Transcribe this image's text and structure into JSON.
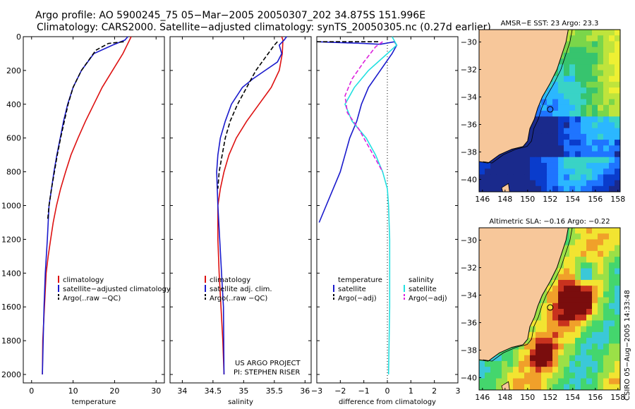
{
  "header": {
    "line1": "Argo profile: AO 5900245_75 05−Mar−2005 20050307_202 34.875S 151.996E",
    "line2": "Climatology: CARS2000. Satellite−adjusted climatology: synTS_20050305.nc (0.27d earlier)"
  },
  "project": {
    "line1": "US ARGO PROJECT",
    "line2": "PI: STEPHEN RISER"
  },
  "side_credit": "CSIRO 05−Aug−2005 14:33:48",
  "colors": {
    "climatology": "#dd1111",
    "satellite": "#1a1acc",
    "argo": "#000000",
    "satellite_salinity": "#22e0e0",
    "argo_adj_salinity": "#dd22dd",
    "land": "#f7c79a",
    "coast": "#000000"
  },
  "chart_data": [
    {
      "type": "line",
      "title": "",
      "xlabel": "temperature",
      "ylabel": "",
      "xlim": [
        -2,
        32
      ],
      "ylim": [
        2050,
        0
      ],
      "xticks": [
        0,
        10,
        20,
        30
      ],
      "yticks": [
        0,
        200,
        400,
        600,
        800,
        1000,
        1200,
        1400,
        1600,
        1800,
        2000
      ],
      "legend": [
        "climatology",
        "satellite−adjusted climatology",
        "Argo(..raw −QC)"
      ],
      "series": [
        {
          "name": "climatology",
          "style": "solid",
          "color": "climatology",
          "x": [
            24.0,
            23.6,
            22.0,
            19.5,
            17.0,
            15.0,
            13.0,
            11.2,
            9.5,
            8.2,
            7.0,
            6.0,
            5.2,
            4.6,
            4.0,
            3.5,
            3.1,
            2.7,
            2.6
          ],
          "y": [
            0,
            20,
            100,
            200,
            300,
            400,
            500,
            600,
            700,
            800,
            900,
            1000,
            1100,
            1200,
            1300,
            1400,
            1600,
            1800,
            2000
          ]
        },
        {
          "name": "satellite−adjusted climatology",
          "style": "solid",
          "color": "satellite",
          "x": [
            23.2,
            22.5,
            19.5,
            15.0,
            12.0,
            10.0,
            8.7,
            7.7,
            6.9,
            6.1,
            5.4,
            4.8,
            4.2,
            3.8,
            3.3,
            3.0,
            2.8,
            2.6
          ],
          "y": [
            0,
            20,
            50,
            100,
            200,
            300,
            400,
            500,
            600,
            700,
            800,
            900,
            1000,
            1200,
            1400,
            1600,
            1800,
            2000
          ]
        },
        {
          "name": "Argo(..raw −QC)",
          "style": "dashed",
          "color": "argo",
          "x": [
            22.2,
            18.5,
            15.5,
            12.0,
            10.0,
            8.8,
            7.9,
            7.0,
            6.2,
            5.5,
            4.8,
            4.2,
            3.9
          ],
          "y": [
            30,
            40,
            80,
            200,
            300,
            400,
            500,
            600,
            700,
            800,
            900,
            1000,
            1080
          ]
        }
      ]
    },
    {
      "type": "line",
      "title": "",
      "xlabel": "salinity",
      "ylabel": "",
      "xlim": [
        33.8,
        36.1
      ],
      "ylim": [
        2050,
        0
      ],
      "xticks": [
        34,
        34.5,
        35,
        35.5,
        36
      ],
      "legend": [
        "climatology",
        "satellite adj. clim.",
        "Argo(..raw −QC)"
      ],
      "series": [
        {
          "name": "climatology",
          "style": "solid",
          "color": "climatology",
          "x": [
            35.62,
            35.64,
            35.63,
            35.58,
            35.45,
            35.25,
            35.05,
            34.88,
            34.76,
            34.68,
            34.62,
            34.58,
            34.58,
            34.6,
            34.63,
            34.66,
            34.68
          ],
          "y": [
            0,
            20,
            100,
            200,
            300,
            400,
            500,
            600,
            700,
            800,
            900,
            1000,
            1200,
            1400,
            1600,
            1800,
            2000
          ]
        },
        {
          "name": "satellite adj. clim.",
          "style": "solid",
          "color": "satellite",
          "x": [
            35.7,
            35.66,
            35.58,
            35.62,
            35.55,
            35.35,
            35.15,
            34.98,
            34.8,
            34.7,
            34.62,
            34.58,
            34.56,
            34.58,
            34.61,
            34.64,
            34.67,
            34.68
          ],
          "y": [
            0,
            20,
            50,
            100,
            150,
            200,
            250,
            300,
            400,
            500,
            600,
            700,
            800,
            1000,
            1200,
            1400,
            1600,
            2000
          ]
        },
        {
          "name": "Argo(..raw −QC)",
          "style": "dashed",
          "color": "argo",
          "x": [
            35.55,
            35.5,
            35.4,
            35.2,
            35.05,
            34.9,
            34.78,
            34.7,
            34.65,
            34.6,
            34.58
          ],
          "y": [
            30,
            50,
            100,
            200,
            300,
            400,
            500,
            600,
            700,
            800,
            900
          ]
        }
      ]
    },
    {
      "type": "line",
      "title": "",
      "xlabel": "difference from climatology",
      "ylabel": "",
      "xlim": [
        -3,
        3
      ],
      "ylim": [
        2050,
        0
      ],
      "xticks": [
        -3,
        -2,
        -1,
        0,
        1,
        2,
        3
      ],
      "legend": [
        "temperature",
        "satellite",
        "Argo(−adj)",
        "salinity",
        "satellite",
        "Argo(−adj)"
      ],
      "series": [
        {
          "name": "temperature satellite",
          "style": "solid",
          "color": "satellite",
          "x": [
            -3.0,
            -2.0,
            -1.0,
            -0.3,
            0.3,
            0.4,
            0.2,
            -0.3,
            -0.8,
            -1.1,
            -1.3,
            -1.6,
            -1.8,
            -2.0,
            -2.3,
            -2.6,
            -2.9
          ],
          "y": [
            30,
            35,
            40,
            45,
            30,
            50,
            100,
            200,
            300,
            400,
            500,
            600,
            700,
            800,
            900,
            1000,
            1100
          ]
        },
        {
          "name": "temperature Argo(−adj)",
          "style": "dashed",
          "color": "argo",
          "x": [
            -3.0,
            -2.0,
            -1.0,
            -0.3
          ],
          "y": [
            30,
            30,
            30,
            30
          ]
        },
        {
          "name": "salinity satellite",
          "style": "solid",
          "color": "satellite_salinity",
          "x": [
            0.2,
            0.4,
            0.0,
            -0.8,
            -1.4,
            -1.8,
            -1.5,
            -0.9,
            -0.5,
            -0.2,
            0.0,
            0.05,
            0.1,
            0.1,
            0.1,
            0.05
          ],
          "y": [
            0,
            50,
            100,
            200,
            300,
            400,
            500,
            600,
            700,
            800,
            900,
            1000,
            1200,
            1400,
            1600,
            2000
          ]
        },
        {
          "name": "salinity Argo(−adj)",
          "style": "dashed",
          "color": "argo_adj_salinity",
          "x": [
            -0.2,
            -0.5,
            -1.0,
            -1.5,
            -1.8,
            -1.7,
            -1.2,
            -0.6,
            -0.2
          ],
          "y": [
            30,
            60,
            150,
            250,
            350,
            450,
            550,
            700,
            800
          ]
        }
      ]
    }
  ],
  "maps": [
    {
      "title": "AMSR−E SST: 23 Argo: 23.3",
      "yticks": [
        "-30",
        "-32",
        "-34",
        "-36",
        "-38",
        "-40"
      ],
      "xticks": [
        "146",
        "148",
        "150",
        "152",
        "154",
        "156",
        "158"
      ],
      "marker": {
        "lon": 152.0,
        "lat": -34.9
      },
      "lonlim": [
        145.7,
        158.2
      ],
      "latlim": [
        -40.9,
        -29.1
      ]
    },
    {
      "title": "Altimetric SLA: −0.16 Argo: −0.22",
      "yticks": [
        "-30",
        "-32",
        "-34",
        "-36",
        "-38",
        "-40"
      ],
      "xticks": [
        "146",
        "148",
        "150",
        "152",
        "154",
        "156",
        "158"
      ],
      "marker": {
        "lon": 152.0,
        "lat": -34.9
      },
      "lonlim": [
        145.7,
        158.2
      ],
      "latlim": [
        -40.9,
        -29.1
      ]
    }
  ]
}
